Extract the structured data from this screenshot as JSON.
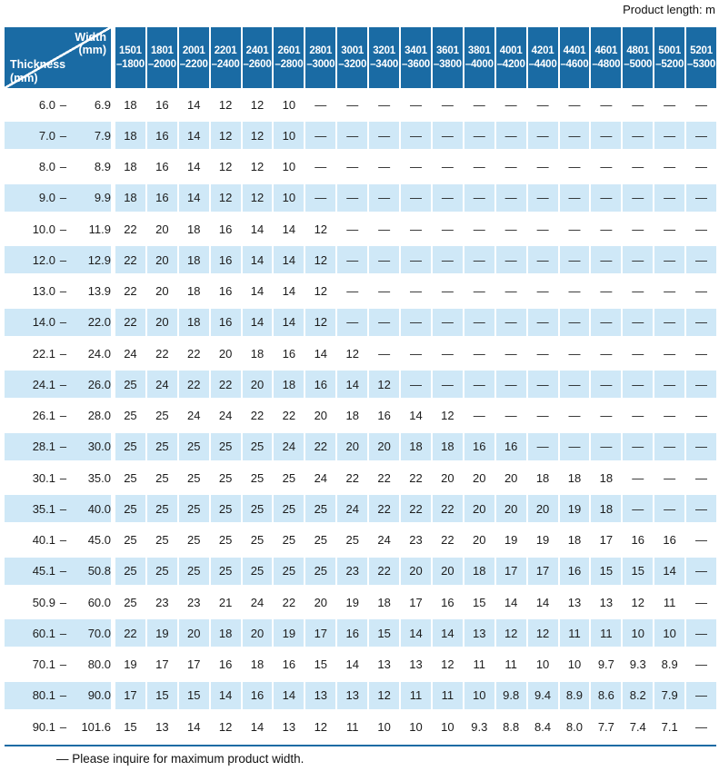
{
  "note_top": "Product length: m",
  "footnote": "— Please inquire for maximum product width.",
  "colors": {
    "header_blue": "#1a6ba4",
    "row_blue": "#cfe8f7",
    "text": "#1c1c1c"
  },
  "table": {
    "corner": {
      "top_label": "Width",
      "top_unit": "(mm)",
      "bottom_label": "Thickness",
      "bottom_unit": "(mm)"
    },
    "range_separator": "–",
    "width_columns": [
      {
        "line1": "1501",
        "line2": "–1800"
      },
      {
        "line1": "1801",
        "line2": "–2000"
      },
      {
        "line1": "2001",
        "line2": "–2200"
      },
      {
        "line1": "2201",
        "line2": "–2400"
      },
      {
        "line1": "2401",
        "line2": "–2600"
      },
      {
        "line1": "2601",
        "line2": "–2800"
      },
      {
        "line1": "2801",
        "line2": "–3000"
      },
      {
        "line1": "3001",
        "line2": "–3200"
      },
      {
        "line1": "3201",
        "line2": "–3400"
      },
      {
        "line1": "3401",
        "line2": "–3600"
      },
      {
        "line1": "3601",
        "line2": "–3800"
      },
      {
        "line1": "3801",
        "line2": "–4000"
      },
      {
        "line1": "4001",
        "line2": "–4200"
      },
      {
        "line1": "4201",
        "line2": "–4400"
      },
      {
        "line1": "4401",
        "line2": "–4600"
      },
      {
        "line1": "4601",
        "line2": "–4800"
      },
      {
        "line1": "4801",
        "line2": "–5000"
      },
      {
        "line1": "5001",
        "line2": "–5200"
      },
      {
        "line1": "5201",
        "line2": "–5300"
      }
    ],
    "rows": [
      {
        "from": "6.0",
        "to": "6.9",
        "values": [
          "18",
          "16",
          "14",
          "12",
          "12",
          "10",
          "—",
          "—",
          "—",
          "—",
          "—",
          "—",
          "—",
          "—",
          "—",
          "—",
          "—",
          "—",
          "—"
        ]
      },
      {
        "from": "7.0",
        "to": "7.9",
        "values": [
          "18",
          "16",
          "14",
          "12",
          "12",
          "10",
          "—",
          "—",
          "—",
          "—",
          "—",
          "—",
          "—",
          "—",
          "—",
          "—",
          "—",
          "—",
          "—"
        ]
      },
      {
        "from": "8.0",
        "to": "8.9",
        "values": [
          "18",
          "16",
          "14",
          "12",
          "12",
          "10",
          "—",
          "—",
          "—",
          "—",
          "—",
          "—",
          "—",
          "—",
          "—",
          "—",
          "—",
          "—",
          "—"
        ]
      },
      {
        "from": "9.0",
        "to": "9.9",
        "values": [
          "18",
          "16",
          "14",
          "12",
          "12",
          "10",
          "—",
          "—",
          "—",
          "—",
          "—",
          "—",
          "—",
          "—",
          "—",
          "—",
          "—",
          "—",
          "—"
        ]
      },
      {
        "from": "10.0",
        "to": "11.9",
        "values": [
          "22",
          "20",
          "18",
          "16",
          "14",
          "14",
          "12",
          "—",
          "—",
          "—",
          "—",
          "—",
          "—",
          "—",
          "—",
          "—",
          "—",
          "—",
          "—"
        ]
      },
      {
        "from": "12.0",
        "to": "12.9",
        "values": [
          "22",
          "20",
          "18",
          "16",
          "14",
          "14",
          "12",
          "—",
          "—",
          "—",
          "—",
          "—",
          "—",
          "—",
          "—",
          "—",
          "—",
          "—",
          "—"
        ]
      },
      {
        "from": "13.0",
        "to": "13.9",
        "values": [
          "22",
          "20",
          "18",
          "16",
          "14",
          "14",
          "12",
          "—",
          "—",
          "—",
          "—",
          "—",
          "—",
          "—",
          "—",
          "—",
          "—",
          "—",
          "—"
        ]
      },
      {
        "from": "14.0",
        "to": "22.0",
        "values": [
          "22",
          "20",
          "18",
          "16",
          "14",
          "14",
          "12",
          "—",
          "—",
          "—",
          "—",
          "—",
          "—",
          "—",
          "—",
          "—",
          "—",
          "—",
          "—"
        ]
      },
      {
        "from": "22.1",
        "to": "24.0",
        "values": [
          "24",
          "22",
          "22",
          "20",
          "18",
          "16",
          "14",
          "12",
          "—",
          "—",
          "—",
          "—",
          "—",
          "—",
          "—",
          "—",
          "—",
          "—",
          "—"
        ]
      },
      {
        "from": "24.1",
        "to": "26.0",
        "values": [
          "25",
          "24",
          "22",
          "22",
          "20",
          "18",
          "16",
          "14",
          "12",
          "—",
          "—",
          "—",
          "—",
          "—",
          "—",
          "—",
          "—",
          "—",
          "—"
        ]
      },
      {
        "from": "26.1",
        "to": "28.0",
        "values": [
          "25",
          "25",
          "24",
          "24",
          "22",
          "22",
          "20",
          "18",
          "16",
          "14",
          "12",
          "—",
          "—",
          "—",
          "—",
          "—",
          "—",
          "—",
          "—"
        ]
      },
      {
        "from": "28.1",
        "to": "30.0",
        "values": [
          "25",
          "25",
          "25",
          "25",
          "25",
          "24",
          "22",
          "20",
          "20",
          "18",
          "18",
          "16",
          "16",
          "—",
          "—",
          "—",
          "—",
          "—",
          "—"
        ]
      },
      {
        "from": "30.1",
        "to": "35.0",
        "values": [
          "25",
          "25",
          "25",
          "25",
          "25",
          "25",
          "24",
          "22",
          "22",
          "22",
          "20",
          "20",
          "20",
          "18",
          "18",
          "18",
          "—",
          "—",
          "—"
        ]
      },
      {
        "from": "35.1",
        "to": "40.0",
        "values": [
          "25",
          "25",
          "25",
          "25",
          "25",
          "25",
          "25",
          "24",
          "22",
          "22",
          "22",
          "20",
          "20",
          "20",
          "19",
          "18",
          "—",
          "—",
          "—"
        ]
      },
      {
        "from": "40.1",
        "to": "45.0",
        "values": [
          "25",
          "25",
          "25",
          "25",
          "25",
          "25",
          "25",
          "25",
          "24",
          "23",
          "22",
          "20",
          "19",
          "19",
          "18",
          "17",
          "16",
          "16",
          "—"
        ]
      },
      {
        "from": "45.1",
        "to": "50.8",
        "values": [
          "25",
          "25",
          "25",
          "25",
          "25",
          "25",
          "25",
          "23",
          "22",
          "20",
          "20",
          "18",
          "17",
          "17",
          "16",
          "15",
          "15",
          "14",
          "—"
        ]
      },
      {
        "from": "50.9",
        "to": "60.0",
        "values": [
          "25",
          "23",
          "23",
          "21",
          "24",
          "22",
          "20",
          "19",
          "18",
          "17",
          "16",
          "15",
          "14",
          "14",
          "13",
          "13",
          "12",
          "11",
          "—"
        ]
      },
      {
        "from": "60.1",
        "to": "70.0",
        "values": [
          "22",
          "19",
          "20",
          "18",
          "20",
          "19",
          "17",
          "16",
          "15",
          "14",
          "14",
          "13",
          "12",
          "12",
          "11",
          "11",
          "10",
          "10",
          "—"
        ]
      },
      {
        "from": "70.1",
        "to": "80.0",
        "values": [
          "19",
          "17",
          "17",
          "16",
          "18",
          "16",
          "15",
          "14",
          "13",
          "13",
          "12",
          "11",
          "11",
          "10",
          "10",
          "9.7",
          "9.3",
          "8.9",
          "—"
        ]
      },
      {
        "from": "80.1",
        "to": "90.0",
        "values": [
          "17",
          "15",
          "15",
          "14",
          "16",
          "14",
          "13",
          "13",
          "12",
          "11",
          "11",
          "10",
          "9.8",
          "9.4",
          "8.9",
          "8.6",
          "8.2",
          "7.9",
          "—"
        ]
      },
      {
        "from": "90.1",
        "to": "101.6",
        "values": [
          "15",
          "13",
          "14",
          "12",
          "14",
          "13",
          "12",
          "11",
          "10",
          "10",
          "10",
          "9.3",
          "8.8",
          "8.4",
          "8.0",
          "7.7",
          "7.4",
          "7.1",
          "—"
        ]
      }
    ]
  }
}
